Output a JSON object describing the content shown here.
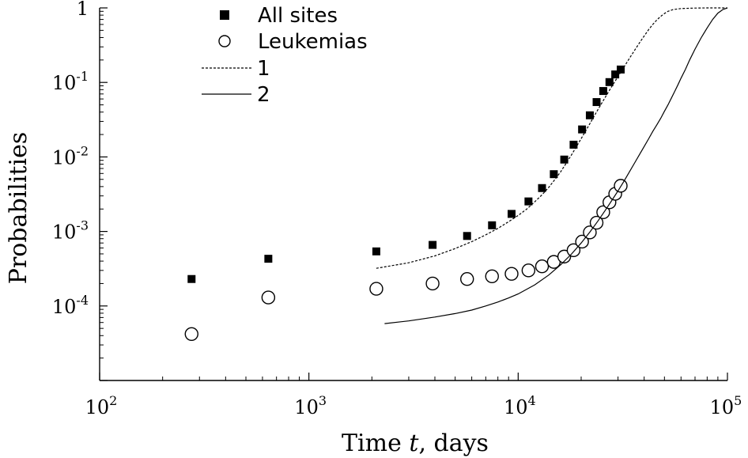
{
  "chart_data": {
    "type": "scatter",
    "x_scale": "log",
    "y_scale": "log",
    "xlim": [
      100,
      100000
    ],
    "ylim": [
      1e-05,
      1
    ],
    "xlabel": "Time t, days",
    "xlabel_parts": [
      "Time ",
      "t",
      ", days"
    ],
    "ylabel": "Probabilities",
    "x_ticks": [
      {
        "value": 100,
        "base": "10",
        "exp": "2"
      },
      {
        "value": 1000,
        "base": "10",
        "exp": "3"
      },
      {
        "value": 10000,
        "base": "10",
        "exp": "4"
      },
      {
        "value": 100000,
        "base": "10",
        "exp": "5"
      }
    ],
    "y_ticks": [
      {
        "value": 1,
        "base": "1",
        "exp": ""
      },
      {
        "value": 0.1,
        "base": "10",
        "exp": "-1"
      },
      {
        "value": 0.01,
        "base": "10",
        "exp": "-2"
      },
      {
        "value": 0.001,
        "base": "10",
        "exp": "-3"
      },
      {
        "value": 0.0001,
        "base": "10",
        "exp": "-4"
      }
    ],
    "legend_position": "top-left",
    "series": [
      {
        "name": "All sites",
        "kind": "points",
        "marker": "filled-square",
        "x": [
          275,
          640,
          2100,
          3900,
          5700,
          7500,
          9300,
          11200,
          13000,
          14800,
          16600,
          18400,
          20200,
          22000,
          23700,
          25500,
          27300,
          29100,
          30900
        ],
        "y": [
          0.00023,
          0.00043,
          0.00054,
          0.00066,
          0.00087,
          0.00121,
          0.00172,
          0.00253,
          0.00382,
          0.00587,
          0.00922,
          0.0146,
          0.0234,
          0.0362,
          0.0545,
          0.0767,
          0.101,
          0.128,
          0.149
        ]
      },
      {
        "name": "Leukemias",
        "kind": "points",
        "marker": "open-circle",
        "x": [
          275,
          640,
          2100,
          3900,
          5700,
          7500,
          9300,
          11200,
          13000,
          14800,
          16600,
          18400,
          20200,
          22000,
          23700,
          25500,
          27300,
          29100,
          30900
        ],
        "y": [
          4.2e-05,
          0.00013,
          0.00017,
          0.0002,
          0.00023,
          0.00025,
          0.00027,
          0.0003,
          0.00034,
          0.00039,
          0.00046,
          0.00056,
          0.00073,
          0.00097,
          0.00131,
          0.00181,
          0.00246,
          0.0032,
          0.0041
        ]
      },
      {
        "name": "1",
        "kind": "line",
        "style": "dashed",
        "x": [
          2100,
          3000,
          4000,
          5000,
          6000,
          7000,
          8000,
          9000,
          10000,
          11000,
          12000,
          13000,
          14000,
          15000,
          16000,
          17000,
          18000,
          19000,
          20000,
          21000,
          22000,
          23000,
          24000,
          25000,
          26000,
          27000,
          28000,
          29000,
          30000,
          32000,
          34000,
          36000,
          38000,
          40000,
          42000,
          44000,
          46000,
          48000,
          50000,
          52000,
          55000,
          60000,
          70000,
          80000,
          90000,
          100000
        ],
        "y": [
          0.00032,
          0.00038,
          0.00047,
          0.00059,
          0.00073,
          0.0009,
          0.0011,
          0.00135,
          0.00164,
          0.002,
          0.0025,
          0.0031,
          0.0039,
          0.005,
          0.0064,
          0.0083,
          0.0107,
          0.0138,
          0.0176,
          0.0223,
          0.028,
          0.0348,
          0.0428,
          0.052,
          0.0625,
          0.0745,
          0.088,
          0.103,
          0.12,
          0.16,
          0.21,
          0.27,
          0.34,
          0.42,
          0.51,
          0.6,
          0.69,
          0.77,
          0.84,
          0.9,
          0.95,
          0.98,
          0.995,
          0.999,
          1.0,
          1.0
        ]
      },
      {
        "name": "2",
        "kind": "line",
        "style": "solid",
        "x": [
          2300,
          3000,
          4000,
          5000,
          6000,
          7000,
          8000,
          9000,
          10000,
          12000,
          14000,
          16000,
          18000,
          20000,
          22000,
          24000,
          26000,
          28000,
          30000,
          32000,
          34000,
          36000,
          38000,
          40000,
          42000,
          44000,
          46000,
          48000,
          50000,
          52000,
          54000,
          56000,
          58000,
          60000,
          63000,
          66000,
          70000,
          75000,
          80000,
          85000,
          90000,
          95000,
          100000
        ],
        "y": [
          5.8e-05,
          6.3e-05,
          7.1e-05,
          7.9e-05,
          8.8e-05,
          0.0001,
          0.000113,
          0.000128,
          0.000145,
          0.000192,
          0.00026,
          0.00036,
          0.0005,
          0.0007,
          0.00098,
          0.00137,
          0.0019,
          0.0026,
          0.0035,
          0.0047,
          0.0063,
          0.0083,
          0.0108,
          0.0138,
          0.0175,
          0.022,
          0.027,
          0.033,
          0.041,
          0.05,
          0.062,
          0.076,
          0.093,
          0.114,
          0.15,
          0.2,
          0.28,
          0.4,
          0.54,
          0.7,
          0.85,
          0.95,
          1.0
        ]
      }
    ]
  }
}
